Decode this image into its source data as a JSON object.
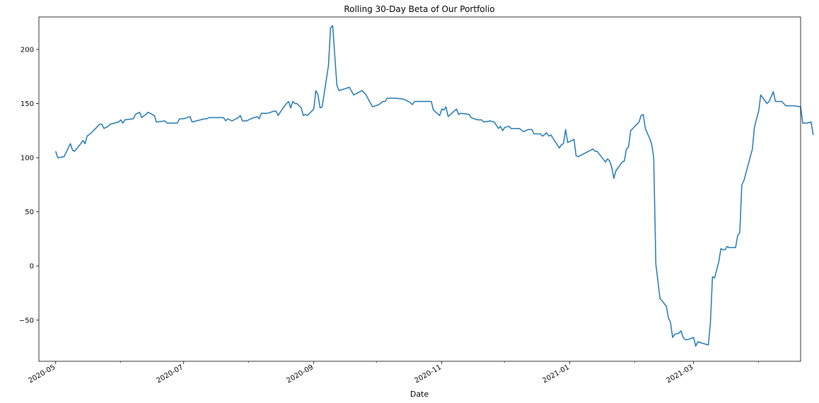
{
  "chart_data": {
    "type": "line",
    "title": "Rolling 30-Day Beta of Our Portfolio",
    "xlabel": "Date",
    "ylabel": "",
    "x_range": [
      "2020-04-23",
      "2021-04-21"
    ],
    "ylim": [
      -88,
      230
    ],
    "grid": false,
    "line_color": "#1f77b4",
    "x_ticks": [
      {
        "date": "2020-05-01",
        "label": "2020-05"
      },
      {
        "date": "2020-07-01",
        "label": "2020-07"
      },
      {
        "date": "2020-09-01",
        "label": "2020-09"
      },
      {
        "date": "2020-11-01",
        "label": "2020-11"
      },
      {
        "date": "2021-01-01",
        "label": "2021-01"
      },
      {
        "date": "2021-03-01",
        "label": "2021-03"
      }
    ],
    "y_ticks": [
      {
        "value": 200,
        "label": "200"
      },
      {
        "value": 150,
        "label": "150"
      },
      {
        "value": 100,
        "label": "100"
      },
      {
        "value": 50,
        "label": "50"
      },
      {
        "value": 0,
        "label": "0"
      },
      {
        "value": -50,
        "label": "−50"
      }
    ],
    "series": [
      {
        "points": [
          [
            "2020-05-01",
            106
          ],
          [
            "2020-05-02",
            100
          ],
          [
            "2020-05-05",
            101
          ],
          [
            "2020-05-07",
            109
          ],
          [
            "2020-05-08",
            113
          ],
          [
            "2020-05-09",
            107
          ],
          [
            "2020-05-10",
            106
          ],
          [
            "2020-05-13",
            113
          ],
          [
            "2020-05-14",
            116
          ],
          [
            "2020-05-15",
            113
          ],
          [
            "2020-05-16",
            120
          ],
          [
            "2020-05-18",
            123
          ],
          [
            "2020-05-20",
            127
          ],
          [
            "2020-05-22",
            131
          ],
          [
            "2020-05-23",
            131
          ],
          [
            "2020-05-24",
            127
          ],
          [
            "2020-05-26",
            129
          ],
          [
            "2020-05-27",
            131
          ],
          [
            "2020-05-31",
            133
          ],
          [
            "2020-06-01",
            135
          ],
          [
            "2020-06-02",
            132
          ],
          [
            "2020-06-03",
            135
          ],
          [
            "2020-06-07",
            136
          ],
          [
            "2020-06-08",
            140
          ],
          [
            "2020-06-10",
            142
          ],
          [
            "2020-06-11",
            137
          ],
          [
            "2020-06-13",
            140
          ],
          [
            "2020-06-14",
            142
          ],
          [
            "2020-06-17",
            139
          ],
          [
            "2020-06-18",
            133
          ],
          [
            "2020-06-22",
            134
          ],
          [
            "2020-06-23",
            132
          ],
          [
            "2020-06-28",
            132
          ],
          [
            "2020-06-29",
            136
          ],
          [
            "2020-07-01",
            136
          ],
          [
            "2020-07-04",
            138
          ],
          [
            "2020-07-05",
            133
          ],
          [
            "2020-07-07",
            134
          ],
          [
            "2020-07-11",
            136
          ],
          [
            "2020-07-12",
            136
          ],
          [
            "2020-07-13",
            137
          ],
          [
            "2020-07-20",
            137
          ],
          [
            "2020-07-21",
            134
          ],
          [
            "2020-07-22",
            136
          ],
          [
            "2020-07-24",
            134
          ],
          [
            "2020-07-27",
            137
          ],
          [
            "2020-07-28",
            139
          ],
          [
            "2020-07-29",
            134
          ],
          [
            "2020-07-31",
            134
          ],
          [
            "2020-08-02",
            136
          ],
          [
            "2020-08-05",
            138
          ],
          [
            "2020-08-06",
            136
          ],
          [
            "2020-08-07",
            141
          ],
          [
            "2020-08-10",
            141
          ],
          [
            "2020-08-13",
            143
          ],
          [
            "2020-08-14",
            143
          ],
          [
            "2020-08-15",
            139
          ],
          [
            "2020-08-17",
            145
          ],
          [
            "2020-08-19",
            150
          ],
          [
            "2020-08-20",
            152
          ],
          [
            "2020-08-21",
            146
          ],
          [
            "2020-08-22",
            152
          ],
          [
            "2020-08-23",
            150
          ],
          [
            "2020-08-24",
            150
          ],
          [
            "2020-08-26",
            146
          ],
          [
            "2020-08-27",
            139
          ],
          [
            "2020-08-28",
            140
          ],
          [
            "2020-08-29",
            139
          ],
          [
            "2020-08-30",
            141
          ],
          [
            "2020-09-01",
            145
          ],
          [
            "2020-09-02",
            162
          ],
          [
            "2020-09-03",
            158
          ],
          [
            "2020-09-04",
            146
          ],
          [
            "2020-09-05",
            147
          ],
          [
            "2020-09-08",
            185
          ],
          [
            "2020-09-09",
            220
          ],
          [
            "2020-09-10",
            222
          ],
          [
            "2020-09-12",
            167
          ],
          [
            "2020-09-13",
            162
          ],
          [
            "2020-09-18",
            165
          ],
          [
            "2020-09-20",
            158
          ],
          [
            "2020-09-24",
            162
          ],
          [
            "2020-09-26",
            158
          ],
          [
            "2020-09-27",
            154
          ],
          [
            "2020-09-29",
            147
          ],
          [
            "2020-10-02",
            149
          ],
          [
            "2020-10-04",
            152
          ],
          [
            "2020-10-05",
            152
          ],
          [
            "2020-10-06",
            155
          ],
          [
            "2020-10-10",
            155
          ],
          [
            "2020-10-14",
            154
          ],
          [
            "2020-10-17",
            151
          ],
          [
            "2020-10-18",
            149
          ],
          [
            "2020-10-19",
            152
          ],
          [
            "2020-10-27",
            152
          ],
          [
            "2020-10-28",
            144
          ],
          [
            "2020-10-31",
            139
          ],
          [
            "2020-11-01",
            145
          ],
          [
            "2020-11-02",
            144
          ],
          [
            "2020-11-03",
            147
          ],
          [
            "2020-11-04",
            138
          ],
          [
            "2020-11-08",
            145
          ],
          [
            "2020-11-09",
            140
          ],
          [
            "2020-11-10",
            141
          ],
          [
            "2020-11-14",
            140
          ],
          [
            "2020-11-15",
            137
          ],
          [
            "2020-11-18",
            135
          ],
          [
            "2020-11-20",
            135
          ],
          [
            "2020-11-21",
            133
          ],
          [
            "2020-11-24",
            134
          ],
          [
            "2020-11-26",
            133
          ],
          [
            "2020-11-28",
            127
          ],
          [
            "2020-11-29",
            129
          ],
          [
            "2020-11-30",
            125
          ],
          [
            "2020-12-01",
            128
          ],
          [
            "2020-12-03",
            129
          ],
          [
            "2020-12-04",
            127
          ],
          [
            "2020-12-08",
            127
          ],
          [
            "2020-12-10",
            124
          ],
          [
            "2020-12-12",
            126
          ],
          [
            "2020-12-14",
            126
          ],
          [
            "2020-12-15",
            122
          ],
          [
            "2020-12-18",
            122
          ],
          [
            "2020-12-19",
            120
          ],
          [
            "2020-12-21",
            123
          ],
          [
            "2020-12-22",
            120
          ],
          [
            "2020-12-23",
            121
          ],
          [
            "2020-12-27",
            109
          ],
          [
            "2020-12-28",
            112
          ],
          [
            "2020-12-29",
            113
          ],
          [
            "2020-12-30",
            126
          ],
          [
            "2020-12-31",
            114
          ],
          [
            "2021-01-03",
            117
          ],
          [
            "2021-01-04",
            102
          ],
          [
            "2021-01-05",
            101
          ],
          [
            "2021-01-12",
            108
          ],
          [
            "2021-01-13",
            106
          ],
          [
            "2021-01-14",
            106
          ],
          [
            "2021-01-18",
            96
          ],
          [
            "2021-01-19",
            99
          ],
          [
            "2021-01-20",
            97
          ],
          [
            "2021-01-21",
            91
          ],
          [
            "2021-01-22",
            81
          ],
          [
            "2021-01-23",
            88
          ],
          [
            "2021-01-26",
            96
          ],
          [
            "2021-01-27",
            97
          ],
          [
            "2021-01-28",
            108
          ],
          [
            "2021-01-29",
            110
          ],
          [
            "2021-01-30",
            125
          ],
          [
            "2021-02-03",
            133
          ],
          [
            "2021-02-04",
            139
          ],
          [
            "2021-02-05",
            140
          ],
          [
            "2021-02-06",
            127
          ],
          [
            "2021-02-08",
            118
          ],
          [
            "2021-02-09",
            113
          ],
          [
            "2021-02-10",
            100
          ],
          [
            "2021-02-11",
            2
          ],
          [
            "2021-02-13",
            -30
          ],
          [
            "2021-02-16",
            -37
          ],
          [
            "2021-02-17",
            -48
          ],
          [
            "2021-02-18",
            -52
          ],
          [
            "2021-02-19",
            -66
          ],
          [
            "2021-02-20",
            -63
          ],
          [
            "2021-02-22",
            -62
          ],
          [
            "2021-02-23",
            -60
          ],
          [
            "2021-02-24",
            -66
          ],
          [
            "2021-02-25",
            -68
          ],
          [
            "2021-02-26",
            -68
          ],
          [
            "2021-03-01",
            -66
          ],
          [
            "2021-03-02",
            -74
          ],
          [
            "2021-03-03",
            -70
          ],
          [
            "2021-03-08",
            -73
          ],
          [
            "2021-03-09",
            -53
          ],
          [
            "2021-03-10",
            -10
          ],
          [
            "2021-03-11",
            -11
          ],
          [
            "2021-03-13",
            4
          ],
          [
            "2021-03-14",
            16
          ],
          [
            "2021-03-15",
            15
          ],
          [
            "2021-03-16",
            15
          ],
          [
            "2021-03-17",
            18
          ],
          [
            "2021-03-18",
            17
          ],
          [
            "2021-03-21",
            17
          ],
          [
            "2021-03-22",
            28
          ],
          [
            "2021-03-23",
            31
          ],
          [
            "2021-03-24",
            75
          ],
          [
            "2021-03-25",
            79
          ],
          [
            "2021-03-29",
            108
          ],
          [
            "2021-03-30",
            128
          ],
          [
            "2021-03-31",
            136
          ],
          [
            "2021-04-01",
            143
          ],
          [
            "2021-04-02",
            158
          ],
          [
            "2021-04-05",
            150
          ],
          [
            "2021-04-06",
            152
          ],
          [
            "2021-04-08",
            161
          ],
          [
            "2021-04-09",
            152
          ],
          [
            "2021-04-12",
            152
          ],
          [
            "2021-04-14",
            148
          ],
          [
            "2021-04-18",
            148
          ],
          [
            "2021-04-21",
            147
          ],
          [
            "2021-04-22",
            132
          ],
          [
            "2021-04-24",
            132
          ],
          [
            "2021-04-26",
            133
          ],
          [
            "2021-04-27",
            121
          ]
        ]
      }
    ]
  }
}
